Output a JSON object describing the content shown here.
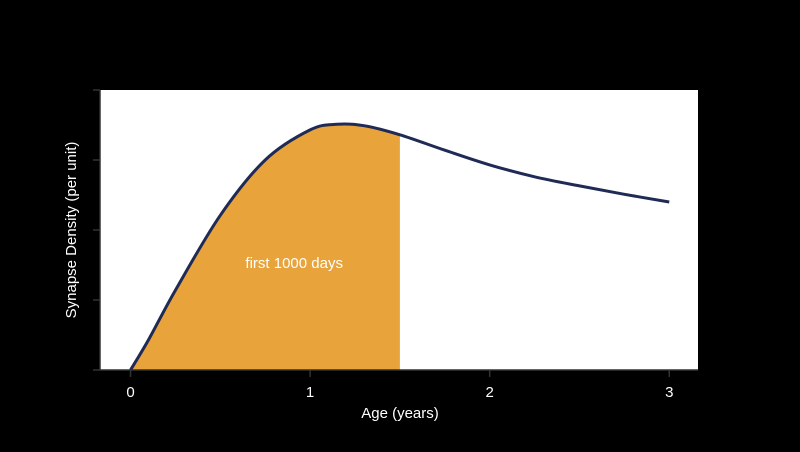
{
  "chart_data": {
    "type": "line",
    "x_label": "Age (years)",
    "y_label": "Synapse Density (per unit)",
    "annotation": "first 1000 days",
    "x": [
      0,
      0.1,
      0.25,
      0.5,
      0.75,
      1.0,
      1.15,
      1.3,
      1.5,
      1.75,
      2.0,
      2.25,
      2.5,
      2.75,
      3.0
    ],
    "series": [
      {
        "color": "#1f2a55",
        "values": [
          0,
          0.43,
          1.14,
          2.21,
          3.0,
          3.43,
          3.51,
          3.49,
          3.36,
          3.14,
          2.93,
          2.76,
          2.63,
          2.51,
          2.4
        ]
      }
    ],
    "shade_until": 1.5,
    "shade_color": "#e8a33a",
    "xlim": [
      -0.17,
      3.16
    ],
    "xticks": [
      0,
      1,
      2,
      3
    ],
    "ylim": [
      0,
      4
    ],
    "yticks": [
      0,
      1,
      2,
      3,
      4
    ]
  }
}
